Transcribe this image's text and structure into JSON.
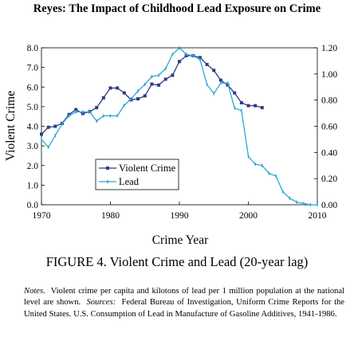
{
  "header": {
    "title": "Reyes: The Impact of Childhood Lead Exposure on Crime"
  },
  "figure": {
    "caption": "FIGURE 4. Violent Crime and Lead (20-year lag)"
  },
  "notes": {
    "label": "Notes.",
    "text": "Violent crime per capita and kilotons of lead per 1 million population at the national level are shown.",
    "sources_label": "Sources:",
    "sources_text": "Federal Bureau of Investigation, Uniform Crime Reports for the United States. U.S. Consumption of Lead in Manufacture of Gasoline Additives, 1941-1986."
  },
  "chart_data": {
    "type": "line",
    "title": "",
    "xlabel": "Crime Year",
    "ylabel": "Violent Crime",
    "y2label": "",
    "xlim": [
      1970,
      2010
    ],
    "ylim": [
      0,
      8
    ],
    "y2lim": [
      0,
      1.2
    ],
    "xticks": [
      "1970",
      "1980",
      "1990",
      "2000",
      "2010"
    ],
    "yticks": [
      "0.0",
      "1.0",
      "2.0",
      "3.0",
      "4.0",
      "5.0",
      "6.0",
      "7.0",
      "8.0"
    ],
    "y2ticks": [
      "0.00",
      "0.20",
      "0.40",
      "0.60",
      "0.80",
      "1.00",
      "1.20"
    ],
    "grid": false,
    "legend_position": "lower-left-center",
    "series": [
      {
        "name": "Violent Crime",
        "axis": "left",
        "color": "#2e3a87",
        "marker": "square",
        "x": [
          1970,
          1971,
          1972,
          1973,
          1974,
          1975,
          1976,
          1977,
          1978,
          1979,
          1980,
          1981,
          1982,
          1983,
          1984,
          1985,
          1986,
          1987,
          1988,
          1989,
          1990,
          1991,
          1992,
          1993,
          1994,
          1995,
          1996,
          1997,
          1998,
          1999,
          2000,
          2001,
          2002
        ],
        "y": [
          3.6,
          3.95,
          4.0,
          4.15,
          4.6,
          4.85,
          4.65,
          4.75,
          4.95,
          5.45,
          5.95,
          5.95,
          5.7,
          5.35,
          5.4,
          5.55,
          6.15,
          6.1,
          6.4,
          6.6,
          7.3,
          7.6,
          7.6,
          7.5,
          7.15,
          6.85,
          6.35,
          6.1,
          5.7,
          5.2,
          5.05,
          5.05,
          4.95
        ]
      },
      {
        "name": "Lead",
        "axis": "right",
        "color": "#2aa9d4",
        "marker": "tick",
        "x": [
          1970,
          1971,
          1972,
          1973,
          1974,
          1975,
          1976,
          1977,
          1978,
          1979,
          1980,
          1981,
          1982,
          1983,
          1984,
          1985,
          1986,
          1987,
          1988,
          1989,
          1990,
          1991,
          1992,
          1993,
          1994,
          1995,
          1996,
          1997,
          1998,
          1999,
          2000,
          2001,
          2002,
          2003,
          2004,
          2005,
          2006,
          2007,
          2008,
          2009,
          2010
        ],
        "y": [
          0.5,
          0.44,
          0.53,
          0.62,
          0.68,
          0.71,
          0.71,
          0.71,
          0.64,
          0.68,
          0.68,
          0.68,
          0.76,
          0.81,
          0.87,
          0.92,
          0.98,
          0.99,
          1.04,
          1.15,
          1.2,
          1.15,
          1.14,
          1.11,
          0.92,
          0.85,
          0.93,
          0.93,
          0.74,
          0.72,
          0.37,
          0.31,
          0.3,
          0.24,
          0.22,
          0.1,
          0.05,
          0.02,
          0.01,
          0.0,
          0.0
        ]
      }
    ]
  }
}
